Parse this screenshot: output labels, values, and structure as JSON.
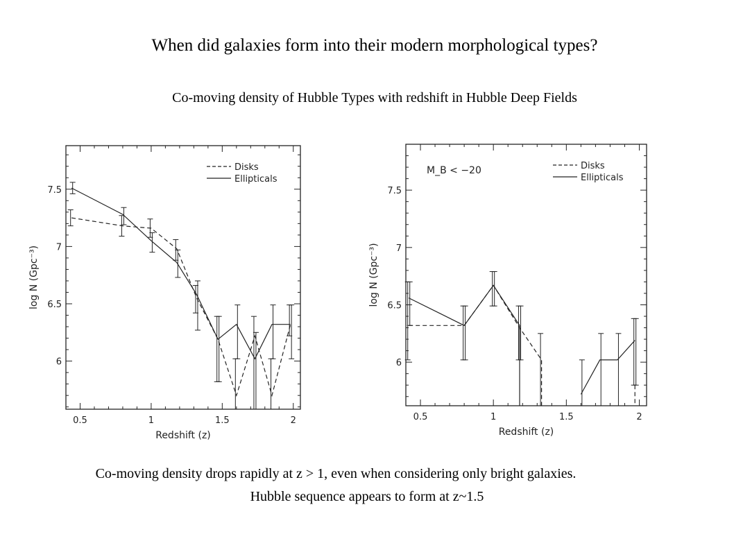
{
  "title": "When did galaxies form into their modern morphological types?",
  "subtitle": "Co-moving density of Hubble Types with redshift in Hubble Deep Fields",
  "footer": {
    "line1": "Co-moving density drops rapidly at z > 1, even when considering only bright galaxies.",
    "line2": "Hubble sequence appears to form at z~1.5"
  },
  "chart_data": [
    {
      "type": "line",
      "annotation": "",
      "xlabel": "Redshift (z)",
      "ylabel": "log N (Gpc⁻³)",
      "xlim": [
        0.4,
        2.05
      ],
      "ylim": [
        5.58,
        7.88
      ],
      "xticks": [
        "0.5",
        "1",
        "1.5",
        "2"
      ],
      "yticks": [
        "6",
        "6.5",
        "7",
        "7.5"
      ],
      "legend_position": "top-right",
      "series": [
        {
          "name": "Disks",
          "style": "dashed",
          "points": [
            [
              0.44,
              7.25
            ],
            [
              0.8,
              7.18
            ],
            [
              1.0,
              7.16
            ],
            [
              1.18,
              6.98
            ],
            [
              1.32,
              6.55
            ],
            [
              1.47,
              6.19
            ],
            [
              1.6,
              5.7
            ],
            [
              1.73,
              6.22
            ],
            [
              1.85,
              5.7
            ],
            [
              1.98,
              6.32
            ]
          ],
          "errors": [
            [
              0.44,
              7.18,
              7.32
            ],
            [
              0.8,
              7.09,
              7.27
            ],
            [
              1.0,
              7.08,
              7.24
            ],
            [
              1.18,
              6.88,
              7.06
            ],
            [
              1.32,
              6.42,
              6.66
            ],
            [
              1.47,
              5.82,
              6.39
            ],
            [
              1.6,
              5.58,
              6.02
            ],
            [
              1.73,
              5.58,
              6.39
            ],
            [
              1.85,
              5.58,
              6.02
            ],
            [
              1.98,
              6.22,
              6.49
            ]
          ]
        },
        {
          "name": "Ellipticals",
          "style": "solid",
          "points": [
            [
              0.44,
              7.51
            ],
            [
              0.8,
              7.28
            ],
            [
              1.0,
              7.05
            ],
            [
              1.18,
              6.86
            ],
            [
              1.32,
              6.58
            ],
            [
              1.47,
              6.19
            ],
            [
              1.6,
              6.32
            ],
            [
              1.73,
              6.02
            ],
            [
              1.85,
              6.32
            ],
            [
              1.98,
              6.32
            ]
          ],
          "errors": [
            [
              0.44,
              7.46,
              7.56
            ],
            [
              0.8,
              7.19,
              7.34
            ],
            [
              1.0,
              6.95,
              7.12
            ],
            [
              1.18,
              6.73,
              6.97
            ],
            [
              1.32,
              6.27,
              6.7
            ],
            [
              1.47,
              5.82,
              6.39
            ],
            [
              1.6,
              6.02,
              6.49
            ],
            [
              1.73,
              5.58,
              6.25
            ],
            [
              1.85,
              6.02,
              6.49
            ],
            [
              1.98,
              6.02,
              6.49
            ]
          ]
        }
      ]
    },
    {
      "type": "line",
      "annotation": "M_B < −20",
      "xlabel": "Redshift (z)",
      "ylabel": "log N (Gpc⁻³)",
      "xlim": [
        0.4,
        2.05
      ],
      "ylim": [
        5.62,
        7.9
      ],
      "xticks": [
        "0.5",
        "1",
        "1.5",
        "2"
      ],
      "yticks": [
        "6",
        "6.5",
        "7",
        "7.5"
      ],
      "legend_position": "top-right",
      "series": [
        {
          "name": "Disks",
          "style": "dashed",
          "segments": [
            [
              [
                0.42,
                6.32
              ],
              [
                0.8,
                6.32
              ],
              [
                1.0,
                6.67
              ],
              [
                1.18,
                6.3
              ],
              [
                1.33,
                6.02
              ],
              [
                1.33,
                5.62
              ]
            ],
            [
              [
                1.97,
                5.8
              ],
              [
                1.97,
                5.62
              ]
            ]
          ],
          "errors": [
            [
              0.42,
              6.02,
              6.7
            ],
            [
              0.8,
              6.02,
              6.49
            ],
            [
              1.0,
              6.49,
              6.79
            ],
            [
              1.18,
              6.02,
              6.49
            ],
            [
              1.33,
              5.62,
              6.25
            ],
            [
              1.97,
              5.8,
              6.38
            ]
          ]
        },
        {
          "name": "Ellipticals",
          "style": "solid",
          "segments": [
            [
              [
                0.42,
                6.56
              ],
              [
                0.8,
                6.32
              ],
              [
                1.0,
                6.67
              ],
              [
                1.18,
                6.32
              ],
              [
                1.18,
                5.62
              ]
            ],
            [
              [
                1.6,
                5.72
              ],
              [
                1.73,
                6.02
              ],
              [
                1.85,
                6.02
              ],
              [
                1.97,
                6.19
              ]
            ]
          ],
          "errors": [
            [
              0.42,
              6.32,
              6.7
            ],
            [
              0.8,
              6.02,
              6.49
            ],
            [
              1.0,
              6.49,
              6.79
            ],
            [
              1.18,
              6.02,
              6.49
            ],
            [
              1.6,
              5.62,
              6.02
            ],
            [
              1.73,
              5.62,
              6.25
            ],
            [
              1.85,
              5.62,
              6.25
            ],
            [
              1.97,
              5.8,
              6.38
            ]
          ]
        }
      ]
    }
  ]
}
